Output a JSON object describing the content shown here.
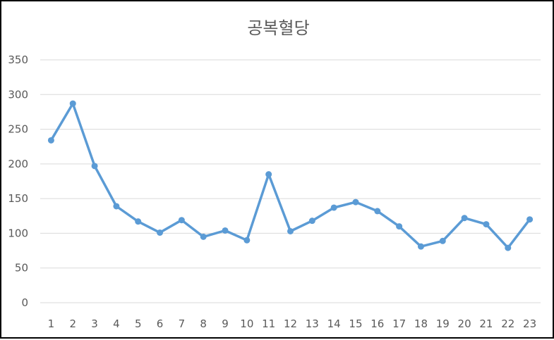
{
  "chart_data": {
    "type": "line",
    "title": "공복혈당",
    "xlabel": "",
    "ylabel": "",
    "categories": [
      "1",
      "2",
      "3",
      "4",
      "5",
      "6",
      "7",
      "8",
      "9",
      "10",
      "11",
      "12",
      "13",
      "14",
      "15",
      "16",
      "17",
      "18",
      "19",
      "20",
      "21",
      "22",
      "23"
    ],
    "series": [
      {
        "values": [
          234,
          287,
          197,
          139,
          117,
          101,
          119,
          95,
          104,
          90,
          185,
          103,
          118,
          137,
          145,
          132,
          110,
          81,
          89,
          122,
          113,
          79,
          120
        ]
      }
    ],
    "ylim": [
      0,
      350
    ],
    "yticks": [
      "0",
      "50",
      "100",
      "150",
      "200",
      "250",
      "300",
      "350"
    ],
    "grid": true,
    "legend": "none"
  },
  "colors": {
    "line": "#5b9bd5",
    "grid": "#d9d9d9",
    "text": "#595959",
    "border": "#000000"
  }
}
